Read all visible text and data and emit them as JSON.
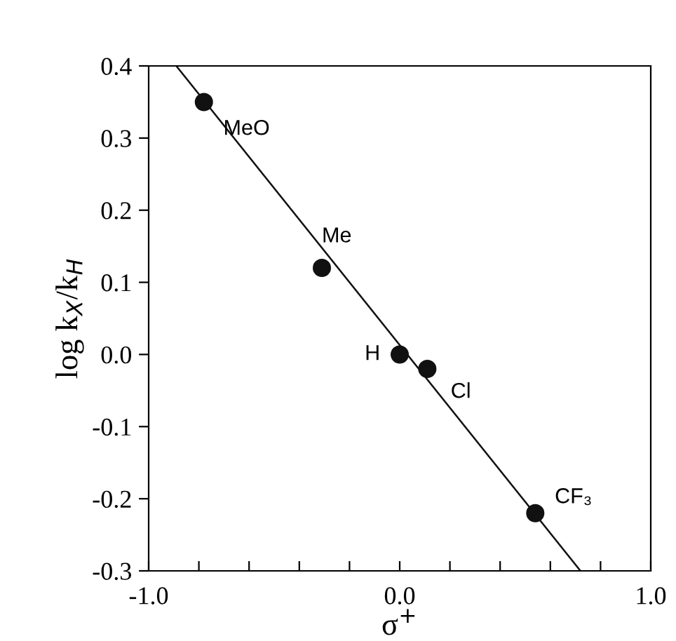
{
  "chart_data": {
    "type": "scatter",
    "xlabel": "σ$^{+}$",
    "ylabel": "log k$_{X}$/k$_{H}$",
    "xlim": [
      -1.0,
      1.0
    ],
    "ylim": [
      -0.3,
      0.4
    ],
    "xticks": [
      {
        "value": -1.0,
        "label": "-1.0"
      },
      {
        "value": -0.8,
        "label": null
      },
      {
        "value": -0.6,
        "label": null
      },
      {
        "value": -0.4,
        "label": null
      },
      {
        "value": -0.2,
        "label": null
      },
      {
        "value": 0.0,
        "label": "0.0"
      },
      {
        "value": 0.2,
        "label": null
      },
      {
        "value": 0.4,
        "label": null
      },
      {
        "value": 0.6,
        "label": null
      },
      {
        "value": 0.8,
        "label": null
      },
      {
        "value": 1.0,
        "label": "1.0"
      }
    ],
    "yticks": [
      {
        "value": -0.3,
        "label": "-0.3"
      },
      {
        "value": -0.2,
        "label": "-0.2"
      },
      {
        "value": -0.1,
        "label": "-0.1"
      },
      {
        "value": 0.0,
        "label": "0.0"
      },
      {
        "value": 0.1,
        "label": "0.1"
      },
      {
        "value": 0.2,
        "label": "0.2"
      },
      {
        "value": 0.3,
        "label": "0.3"
      },
      {
        "value": 0.4,
        "label": "0.4"
      }
    ],
    "series": [
      {
        "color": "#111111",
        "marker": "circle",
        "x": [
          -0.78,
          -0.31,
          0.0,
          0.11,
          0.54
        ],
        "values": [
          0.35,
          0.12,
          0.0,
          -0.02,
          -0.22
        ]
      },
      {
        "type": "line",
        "color": "#111111",
        "marker": "none",
        "line_style": "solid",
        "x": [
          -0.89,
          0.72
        ],
        "values": [
          0.4,
          -0.3
        ]
      }
    ],
    "annotations": [
      {
        "text": "MeO",
        "x": -0.78,
        "y": 0.35
      },
      {
        "text": "Me",
        "x": -0.31,
        "y": 0.12
      },
      {
        "text": "H",
        "x": 0.0,
        "y": 0.0
      },
      {
        "text": "Cl",
        "x": 0.11,
        "y": -0.02
      },
      {
        "text": "CF₃",
        "x": 0.54,
        "y": -0.22
      }
    ],
    "grid": false,
    "legend": false
  }
}
